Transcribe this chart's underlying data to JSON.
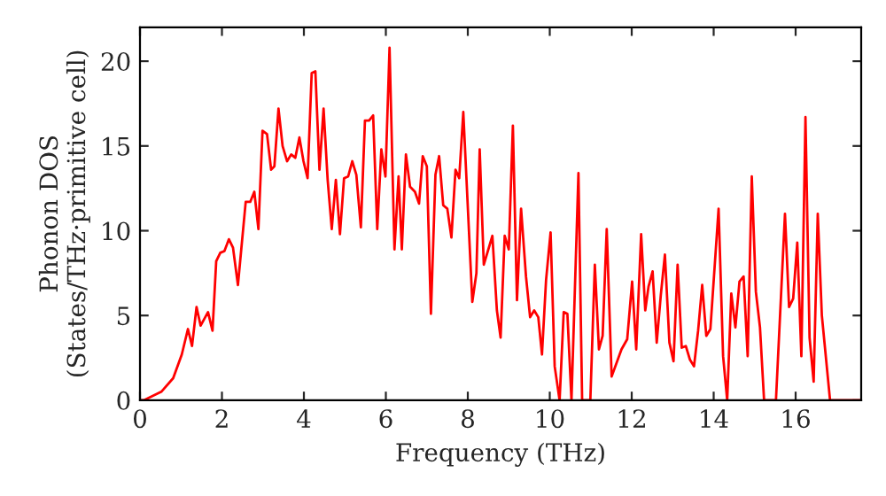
{
  "chart_data": {
    "type": "line",
    "xlabel": "Frequency (THz)",
    "ylabel": "Phonon DOS\n(States/THz·primitive cell)",
    "xlim": [
      0,
      17.6
    ],
    "ylim": [
      0,
      22
    ],
    "xticks": [
      0,
      2,
      4,
      6,
      8,
      10,
      12,
      14,
      16
    ],
    "yticks": [
      0,
      5,
      10,
      15,
      20
    ],
    "grid": false,
    "series": [
      {
        "color": "#ff0000",
        "x": [
          0.0,
          0.09,
          0.52,
          0.81,
          1.02,
          1.17,
          1.27,
          1.38,
          1.48,
          1.66,
          1.77,
          1.86,
          1.96,
          2.06,
          2.17,
          2.27,
          2.39,
          2.58,
          2.69,
          2.79,
          2.89,
          2.99,
          3.1,
          3.2,
          3.28,
          3.38,
          3.48,
          3.59,
          3.69,
          3.79,
          3.89,
          3.99,
          4.09,
          4.19,
          4.28,
          4.38,
          4.48,
          4.58,
          4.68,
          4.78,
          4.88,
          4.98,
          5.08,
          5.18,
          5.28,
          5.39,
          5.49,
          5.59,
          5.69,
          5.79,
          5.89,
          5.99,
          6.09,
          6.21,
          6.31,
          6.39,
          6.49,
          6.59,
          6.71,
          6.81,
          6.9,
          7.0,
          7.1,
          7.21,
          7.3,
          7.4,
          7.5,
          7.6,
          7.7,
          7.79,
          7.89,
          8.11,
          8.21,
          8.29,
          8.39,
          8.6,
          8.71,
          8.8,
          8.9,
          9.0,
          9.1,
          9.2,
          9.3,
          9.42,
          9.52,
          9.62,
          9.72,
          9.81,
          9.91,
          10.02,
          10.12,
          10.24,
          10.34,
          10.43,
          10.53,
          10.7,
          10.79,
          10.99,
          11.1,
          11.2,
          11.29,
          11.39,
          11.51,
          11.75,
          11.89,
          12.01,
          12.11,
          12.23,
          12.33,
          12.41,
          12.51,
          12.61,
          12.71,
          12.81,
          12.92,
          13.02,
          13.12,
          13.22,
          13.32,
          13.42,
          13.52,
          13.62,
          13.72,
          13.82,
          13.92,
          14.12,
          14.23,
          14.33,
          14.43,
          14.53,
          14.63,
          14.73,
          14.83,
          14.93,
          15.03,
          15.13,
          15.23,
          15.52,
          15.74,
          15.84,
          15.94,
          16.04,
          16.14,
          16.24,
          16.34,
          16.44,
          16.54,
          16.64,
          16.84,
          17.58
        ],
        "values": [
          0.0,
          0.0,
          0.5,
          1.3,
          2.7,
          4.2,
          3.2,
          5.5,
          4.4,
          5.2,
          4.1,
          8.2,
          8.7,
          8.8,
          9.5,
          9.0,
          6.8,
          11.7,
          11.7,
          12.3,
          10.1,
          15.9,
          15.7,
          13.6,
          13.8,
          17.2,
          15.0,
          14.1,
          14.5,
          14.3,
          15.5,
          14.1,
          13.1,
          19.3,
          19.4,
          13.6,
          17.2,
          13.0,
          10.1,
          13.0,
          9.8,
          13.1,
          13.2,
          14.1,
          13.3,
          10.2,
          16.5,
          16.5,
          16.8,
          10.1,
          14.8,
          13.2,
          20.8,
          8.9,
          13.2,
          8.9,
          14.5,
          12.6,
          12.3,
          11.6,
          14.4,
          13.8,
          5.1,
          13.3,
          14.4,
          11.5,
          11.3,
          9.6,
          13.6,
          13.1,
          17.0,
          5.8,
          7.5,
          14.8,
          8.0,
          9.7,
          5.3,
          3.7,
          9.7,
          8.9,
          16.2,
          5.9,
          11.3,
          7.3,
          4.9,
          5.3,
          4.9,
          2.7,
          7.1,
          9.9,
          2.0,
          0.0,
          5.2,
          5.1,
          0.0,
          13.4,
          0.0,
          0.0,
          8.0,
          3.0,
          3.8,
          10.1,
          1.4,
          3.0,
          3.6,
          7.0,
          3.0,
          9.8,
          5.3,
          6.7,
          7.6,
          3.4,
          6.2,
          8.6,
          3.4,
          2.3,
          8.0,
          3.1,
          3.2,
          2.4,
          2.0,
          4.1,
          6.8,
          3.8,
          4.2,
          11.3,
          2.6,
          0.0,
          6.3,
          4.3,
          7.0,
          7.3,
          2.6,
          13.2,
          6.4,
          4.3,
          0.0,
          0.0,
          11.0,
          5.5,
          6.0,
          9.3,
          2.6,
          16.7,
          3.7,
          1.1,
          11.0,
          5.0,
          0.0,
          0.0
        ]
      }
    ]
  }
}
